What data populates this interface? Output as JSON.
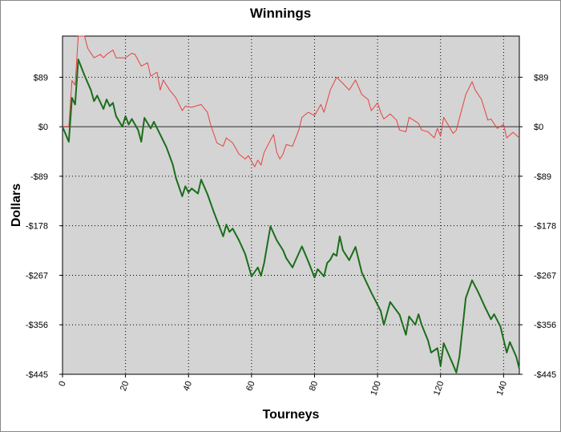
{
  "chart_data": {
    "type": "line",
    "title": "Winnings",
    "x_label": "Tourneys",
    "y_label": "Dollars",
    "xlim": [
      0,
      145
    ],
    "xticks": [
      0,
      20,
      40,
      60,
      80,
      100,
      120,
      140
    ],
    "ylim": [
      -445,
      163
    ],
    "yticks": [
      {
        "value": -445,
        "label": "-$445"
      },
      {
        "value": -356,
        "label": "-$356"
      },
      {
        "value": -267,
        "label": "-$267"
      },
      {
        "value": -178,
        "label": "-$178"
      },
      {
        "value": -89,
        "label": "-$89"
      },
      {
        "value": 0,
        "label": "$0"
      },
      {
        "value": 89,
        "label": "$89"
      }
    ],
    "y2lim": [
      -445,
      163
    ],
    "y2ticks": [
      {
        "value": -445,
        "label": "-$445"
      },
      {
        "value": -356,
        "label": "-$356"
      },
      {
        "value": -267,
        "label": "-$267"
      },
      {
        "value": -178,
        "label": "-$178"
      },
      {
        "value": -89,
        "label": "-$89"
      },
      {
        "value": 0,
        "label": "$0"
      },
      {
        "value": 89,
        "label": "$89"
      }
    ],
    "grid": true,
    "series": [
      {
        "color": "#e84040",
        "width": 1,
        "x": [
          0,
          2,
          3,
          4,
          5,
          7,
          8,
          10,
          12,
          13,
          14,
          16,
          17,
          20,
          22,
          23,
          25,
          27,
          28,
          30,
          31,
          32,
          34,
          36,
          38,
          39,
          41,
          44,
          46,
          47,
          49,
          51,
          52,
          54,
          56,
          58,
          59,
          61,
          62,
          63,
          64,
          66,
          67,
          68,
          69,
          70,
          71,
          73,
          75,
          76,
          78,
          80,
          82,
          83,
          85,
          87,
          89,
          91,
          93,
          95,
          97,
          98,
          100,
          101,
          102,
          104,
          106,
          107,
          109,
          110,
          113,
          114,
          116,
          118,
          119,
          120,
          121,
          124,
          125,
          128,
          130,
          131,
          133,
          135,
          136,
          138,
          140,
          141,
          143,
          145
        ],
        "values": [
          0,
          0,
          83,
          75,
          163,
          163,
          141,
          124,
          130,
          124,
          130,
          138,
          124,
          124,
          132,
          130,
          109,
          115,
          91,
          98,
          66,
          84,
          66,
          52,
          29,
          37,
          35,
          40,
          26,
          4,
          -29,
          -35,
          -20,
          -29,
          -49,
          -58,
          -52,
          -72,
          -60,
          -69,
          -46,
          -24,
          -14,
          -46,
          -58,
          -49,
          -32,
          -35,
          -6,
          17,
          26,
          20,
          40,
          26,
          66,
          89,
          78,
          66,
          84,
          58,
          49,
          29,
          43,
          26,
          14,
          23,
          12,
          -6,
          -9,
          17,
          6,
          -6,
          -9,
          -20,
          -3,
          -17,
          17,
          -12,
          -6,
          58,
          81,
          66,
          49,
          12,
          14,
          -3,
          4,
          -20,
          -10,
          -20
        ]
      },
      {
        "color": "#1a6e1a",
        "width": 2,
        "x": [
          0,
          2,
          3,
          4,
          5,
          7,
          9,
          10,
          11,
          13,
          14,
          15,
          16,
          17,
          19,
          20,
          21,
          22,
          24,
          25,
          26,
          28,
          29,
          31,
          33,
          35,
          36,
          38,
          39,
          40,
          41,
          43,
          44,
          46,
          48,
          51,
          52,
          53,
          54,
          56,
          58,
          60,
          62,
          63,
          64,
          66,
          68,
          70,
          71,
          73,
          74,
          76,
          78,
          80,
          81,
          83,
          84,
          85,
          86,
          87,
          88,
          89,
          91,
          93,
          95,
          98,
          101,
          102,
          104,
          107,
          109,
          110,
          112,
          113,
          114,
          116,
          117,
          119,
          120,
          121,
          122,
          124,
          125,
          126,
          128,
          130,
          132,
          134,
          136,
          137,
          139,
          141,
          142,
          144,
          145
        ],
        "values": [
          0,
          -27,
          52,
          40,
          121,
          92,
          66,
          46,
          56,
          32,
          49,
          37,
          43,
          19,
          0,
          19,
          4,
          14,
          -6,
          -27,
          16,
          -3,
          9,
          -14,
          -37,
          -68,
          -92,
          -125,
          -107,
          -118,
          -111,
          -120,
          -95,
          -121,
          -153,
          -197,
          -176,
          -189,
          -183,
          -204,
          -229,
          -269,
          -253,
          -268,
          -245,
          -179,
          -204,
          -222,
          -236,
          -253,
          -240,
          -215,
          -242,
          -271,
          -256,
          -269,
          -245,
          -239,
          -228,
          -232,
          -197,
          -222,
          -240,
          -216,
          -262,
          -298,
          -331,
          -356,
          -315,
          -338,
          -374,
          -341,
          -356,
          -337,
          -356,
          -384,
          -406,
          -398,
          -430,
          -389,
          -402,
          -428,
          -442,
          -413,
          -308,
          -276,
          -298,
          -323,
          -346,
          -337,
          -359,
          -406,
          -387,
          -413,
          -435
        ]
      }
    ]
  }
}
